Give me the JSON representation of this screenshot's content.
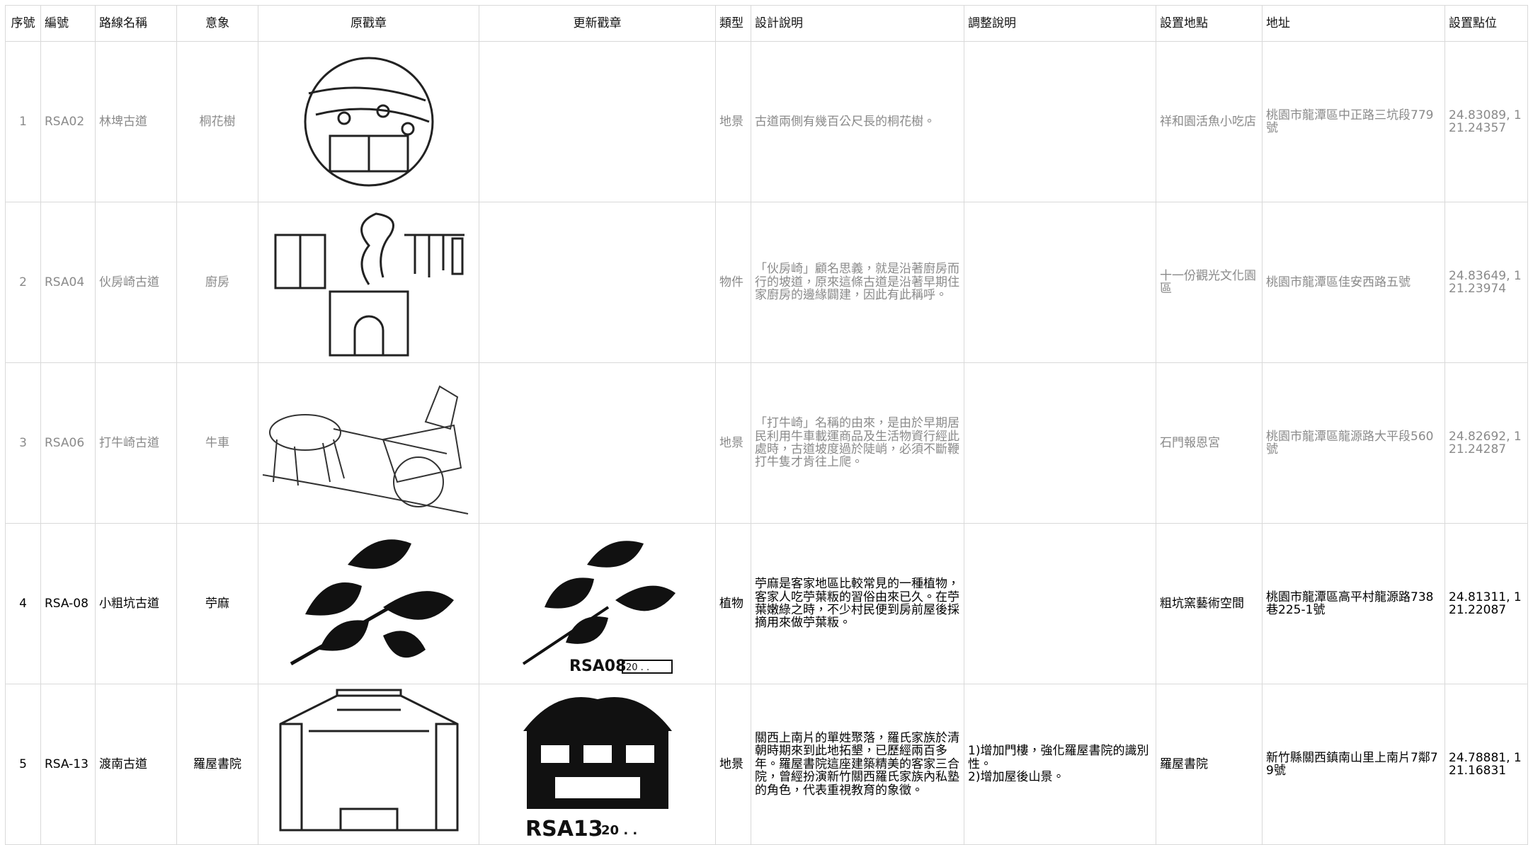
{
  "table": {
    "header": [
      "序號",
      "編號",
      "路線名稱",
      "意象",
      "原戳章",
      "更新戳章",
      "類型",
      "設計說明",
      "調整說明",
      "設置地點",
      "地址",
      "設置點位"
    ],
    "rows": [
      {
        "no": "1",
        "code": "RSA02",
        "route": "林埤古道",
        "imagery": "桐花樹",
        "type": "地景",
        "design": "古道兩側有幾百公尺長的桐花樹。",
        "location": "祥和園活魚小吃店",
        "address": "桃園市龍潭區中正路三坑段779號",
        "coords": "24.83089, 121.24357"
      },
      {
        "no": "2",
        "code": "RSA04",
        "route": "伙房崎古道",
        "imagery": "廚房",
        "type": "物件",
        "design": "「伙房崎」顧名思義，就是沿著廚房而行的坡道，原來這條古道是沿著早期住家廚房的邊緣闢建，因此有此稱呼。",
        "location": "十一份觀光文化園區",
        "address": "桃園市龍潭區佳安西路五號",
        "coords": "24.83649, 121.23974"
      },
      {
        "no": "3",
        "code": "RSA06",
        "route": "打牛崎古道",
        "imagery": "牛車",
        "type": "地景",
        "design": "「打牛崎」名稱的由來，是由於早期居民利用牛車載運商品及生活物資行經此處時，古道坡度過於陡峭，必須不斷鞭打牛隻才肯往上爬。",
        "location": "石門報恩宮",
        "address": "桃園市龍潭區龍源路大平段560號",
        "coords": "24.82692, 121.24287"
      },
      {
        "no": "4",
        "code": "RSA-08",
        "route": "小粗坑古道",
        "imagery": "苧麻",
        "type": "植物",
        "design": "苧麻是客家地區比較常見的一種植物，客家人吃苧葉粄的習俗由來已久。在苧葉嫩綠之時，不少村民便到房前屋後採摘用來做苧葉粄。",
        "location": "粗坑窯藝術空間",
        "address": "桃園市龍潭區高平村龍源路738巷225-1號",
        "coords": "24.81311, 121.22087",
        "stamp_code": "RSA08",
        "stamp_date": "20 . ."
      },
      {
        "no": "5",
        "code": "RSA-13",
        "route": "渡南古道",
        "imagery": "羅屋書院",
        "type": "地景",
        "design": "關西上南片的單姓聚落，羅氏家族於清朝時期來到此地拓墾，已歷經兩百多年。羅屋書院這座建築精美的客家三合院，曾經扮演新竹關西羅氏家族內私塾的角色，代表重視教育的象徵。",
        "adjust": [
          "1)增加門樓，強化羅屋書院的識別性。",
          "2)增加屋後山景。"
        ],
        "location": "羅屋書院",
        "address": "新竹縣關西鎮南山里上南片7鄰79號",
        "coords": "24.78881, 121.16831",
        "stamp_code": "RSA13",
        "stamp_date": "20 . ."
      }
    ]
  }
}
